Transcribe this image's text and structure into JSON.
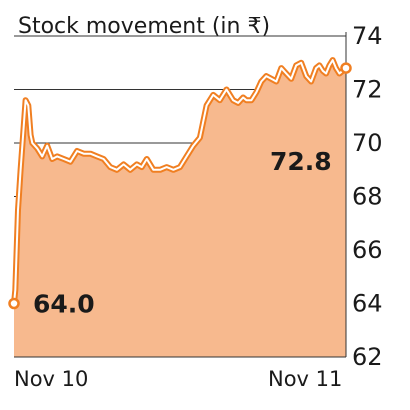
{
  "colors": {
    "area_fill": "#F7B98E",
    "line": "#F07F22",
    "line_halo": "#FFFFFF",
    "text": "#1A1A1A",
    "axis": "#333333",
    "grid": "#333333"
  },
  "chart_data": {
    "type": "area",
    "title": "Stock movement (in ₹)",
    "xlabel": "",
    "ylabel": "",
    "ylim": [
      62,
      74
    ],
    "y_ticks": [
      62,
      64,
      66,
      68,
      70,
      72,
      74
    ],
    "y_axis_side": "right",
    "grid": "horizontal",
    "x_ticks": [
      {
        "label": "Nov 10",
        "x": 0
      },
      {
        "label": "Nov 11",
        "x": 1
      }
    ],
    "annotations": [
      {
        "text": "64.0",
        "x": 0,
        "y": 64.0,
        "marker": true
      },
      {
        "text": "72.8",
        "x": 1,
        "y": 72.8,
        "marker": true
      }
    ],
    "series": [
      {
        "x": [
          0,
          0.004,
          0.012,
          0.02,
          0.035,
          0.043,
          0.05,
          0.055,
          0.07,
          0.085,
          0.1,
          0.115,
          0.13,
          0.15,
          0.17,
          0.19,
          0.21,
          0.23,
          0.25,
          0.27,
          0.29,
          0.31,
          0.33,
          0.35,
          0.37,
          0.385,
          0.4,
          0.42,
          0.44,
          0.46,
          0.48,
          0.5,
          0.52,
          0.54,
          0.56,
          0.58,
          0.6,
          0.62,
          0.64,
          0.66,
          0.675,
          0.69,
          0.7,
          0.715,
          0.73,
          0.745,
          0.76,
          0.775,
          0.79,
          0.805,
          0.82,
          0.835,
          0.85,
          0.865,
          0.88,
          0.895,
          0.91,
          0.92,
          0.93,
          0.94,
          0.95,
          0.96,
          0.97,
          0.98,
          0.99,
          1.0
        ],
        "values": [
          64.0,
          64.5,
          67.5,
          69.0,
          71.6,
          71.4,
          70.3,
          70.0,
          69.8,
          69.5,
          69.9,
          69.4,
          69.5,
          69.4,
          69.3,
          69.7,
          69.6,
          69.6,
          69.5,
          69.4,
          69.1,
          69.0,
          69.2,
          69.0,
          69.2,
          69.1,
          69.4,
          69.0,
          69.0,
          69.1,
          69.0,
          69.1,
          69.5,
          69.9,
          70.2,
          71.4,
          71.8,
          71.6,
          72.0,
          71.6,
          71.5,
          71.7,
          71.6,
          71.6,
          71.9,
          72.3,
          72.5,
          72.4,
          72.3,
          72.8,
          72.6,
          72.4,
          72.9,
          73.0,
          72.5,
          72.3,
          72.8,
          72.9,
          72.7,
          72.6,
          72.9,
          73.1,
          72.8,
          72.6,
          72.7,
          72.8
        ]
      }
    ]
  }
}
